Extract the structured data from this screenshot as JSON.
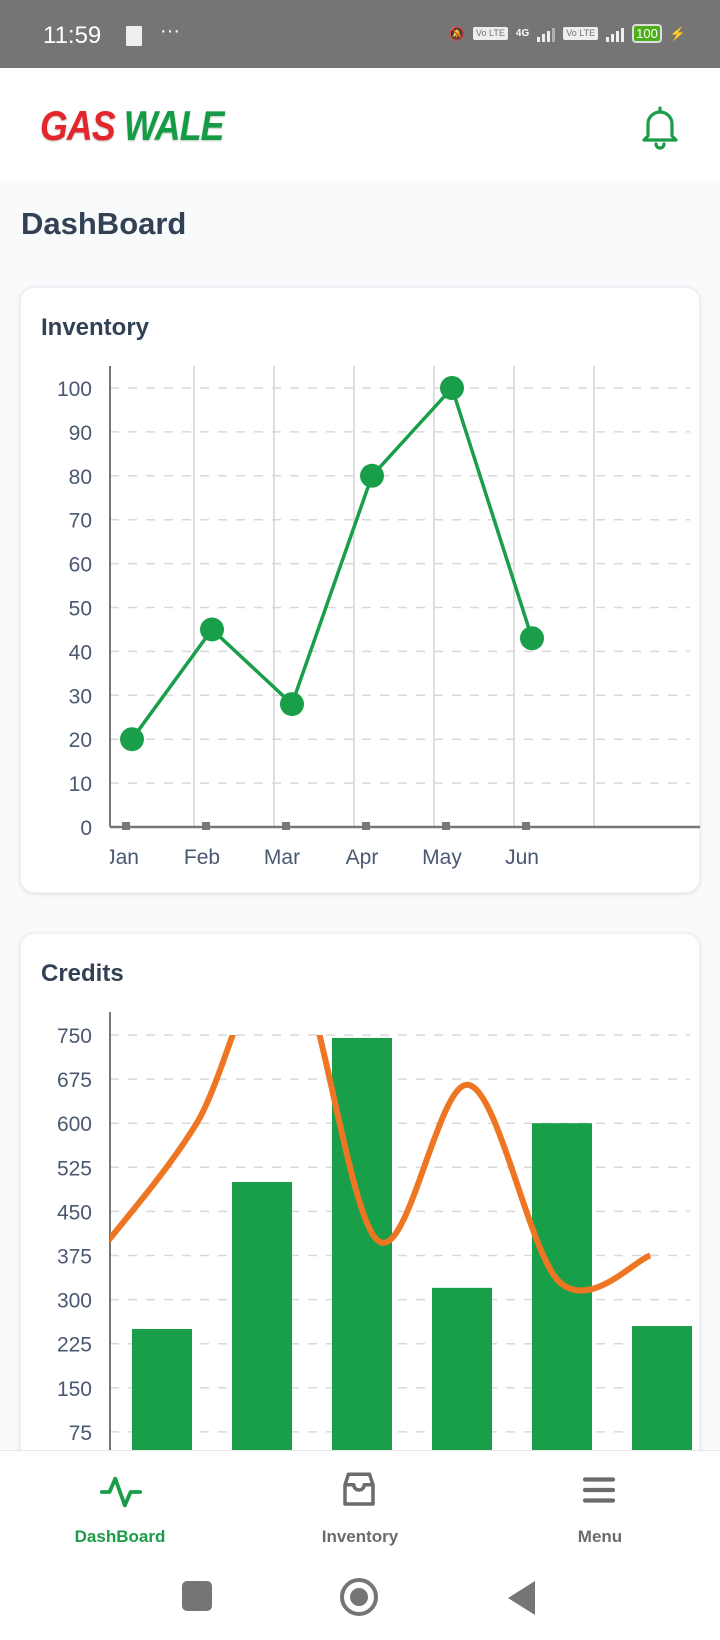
{
  "status_bar": {
    "time": "11:59",
    "battery": "100",
    "network": "4G",
    "volte": "Vo LTE"
  },
  "header": {
    "logo_part1": "GAS",
    "logo_part2": "WALE",
    "icons": [
      "bell-icon"
    ]
  },
  "page_title": "DashBoard",
  "colors": {
    "green": "#199e4a",
    "orange": "#ee7623",
    "text": "#334155"
  },
  "chart_data": [
    {
      "type": "line",
      "title": "Inventory",
      "categories": [
        "Jan",
        "Feb",
        "Mar",
        "Apr",
        "May",
        "Jun"
      ],
      "values": [
        20,
        45,
        28,
        80,
        100,
        43
      ],
      "ylim": [
        0,
        100
      ],
      "yticks": [
        0,
        10,
        20,
        30,
        40,
        50,
        60,
        70,
        80,
        90,
        100
      ],
      "grid": true,
      "xlabel": "",
      "ylabel": ""
    },
    {
      "type": "bar",
      "title": "Credits",
      "yticks": [
        75,
        150,
        225,
        300,
        375,
        450,
        525,
        600,
        675,
        750
      ],
      "ylim": [
        0,
        750
      ],
      "grid": true,
      "series": [
        {
          "name": "bars",
          "type": "bar",
          "values": [
            250,
            500,
            745,
            320,
            600,
            255
          ]
        },
        {
          "name": "line",
          "type": "line",
          "values": [
            395,
            600,
            900,
            400,
            665,
            330,
            375
          ]
        }
      ]
    }
  ],
  "nav": {
    "items": [
      {
        "label": "DashBoard",
        "icon": "activity-icon",
        "active": true
      },
      {
        "label": "Inventory",
        "icon": "inbox-icon"
      },
      {
        "label": "Menu",
        "icon": "menu-icon"
      }
    ]
  }
}
